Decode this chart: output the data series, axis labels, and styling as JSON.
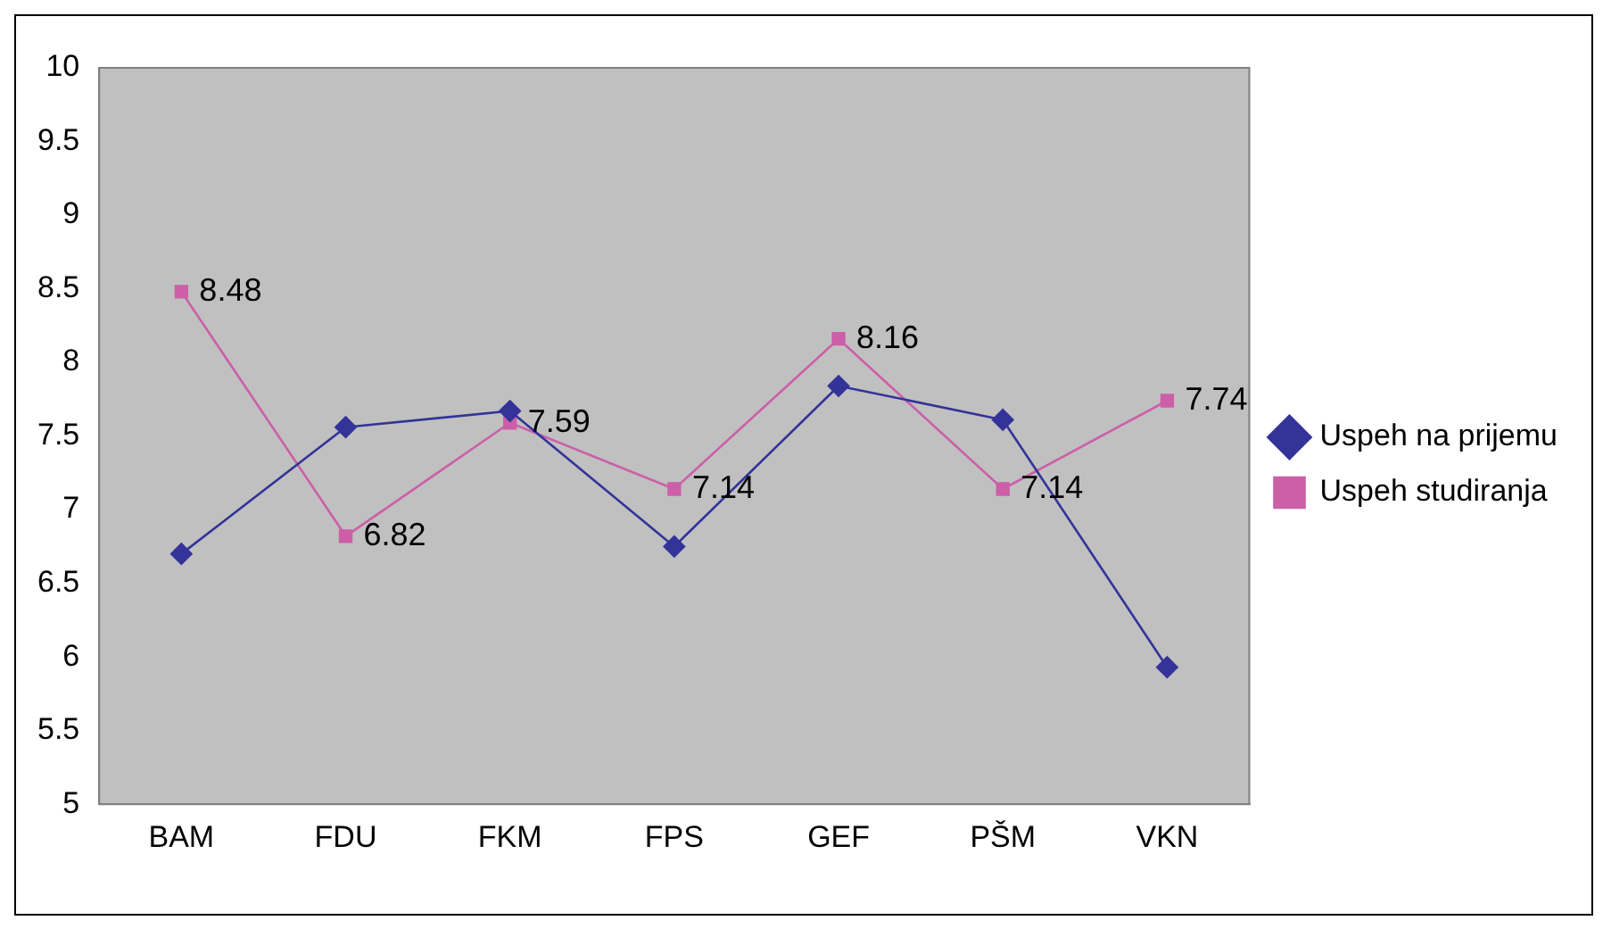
{
  "chart_data": {
    "type": "line",
    "categories": [
      "BAM",
      "FDU",
      "FKM",
      "FPS",
      "GEF",
      "PŠM",
      "VKN"
    ],
    "series": [
      {
        "name": "Uspeh na prijemu",
        "color": "#333399",
        "marker": "diamond",
        "values": [
          6.7,
          7.56,
          7.67,
          6.75,
          7.84,
          7.61,
          5.93
        ]
      },
      {
        "name": "Uspeh studiranja",
        "color": "#cc5fa8",
        "marker": "square",
        "values": [
          8.48,
          6.82,
          7.59,
          7.14,
          8.16,
          7.14,
          7.74
        ],
        "value_labels": [
          "8.48",
          "6.82",
          "7.59",
          "7.14",
          "8.16",
          "7.14",
          "7.74"
        ]
      }
    ],
    "ylim": [
      5,
      10
    ],
    "yticks": [
      5,
      5.5,
      6,
      6.5,
      7,
      7.5,
      8,
      8.5,
      9,
      9.5,
      10
    ],
    "grid": false,
    "legend": "right",
    "line_style": "solid"
  }
}
